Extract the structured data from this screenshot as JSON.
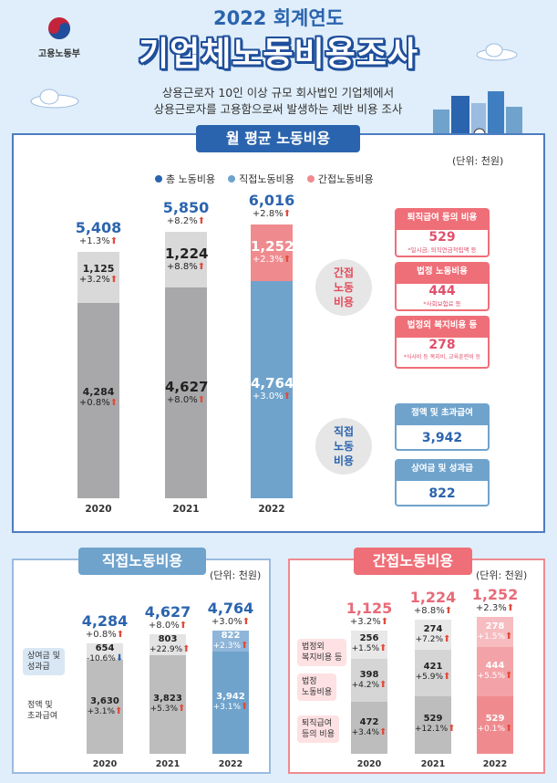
{
  "header": {
    "ministry": "고용노동부",
    "year_title": "2022 회계연도",
    "main_title": "기업체노동비용조사",
    "desc_line1": "상용근로자 10인 이상 규모 회사법인 기업체에서",
    "desc_line2": "상용근로자를 고용함으로써 발생하는 제반 비용 조사"
  },
  "colors": {
    "total": "#2b64ae",
    "direct": "#6fa3cc",
    "indirect": "#ef8b8f",
    "gray_dark": "#a8a8aa",
    "gray_light": "#d9d9da",
    "up_arrow": "#e14b3b",
    "down_arrow": "#2b64ae"
  },
  "chart_data": [
    {
      "type": "bar",
      "title": "월 평균 노동비용",
      "unit": "(단위: 천원)",
      "legend": [
        "총 노동비용",
        "직접노동비용",
        "간접노동비용"
      ],
      "categories": [
        "2020",
        "2021",
        "2022"
      ],
      "series": [
        {
          "name": "직접노동비용",
          "values": [
            4284,
            4627,
            4764
          ],
          "changes": [
            "+0.8%",
            "+8.0%",
            "+3.0%"
          ]
        },
        {
          "name": "간접노동비용",
          "values": [
            1125,
            1224,
            1252
          ],
          "changes": [
            "+3.2%",
            "+8.8%",
            "+2.3%"
          ]
        }
      ],
      "totals": {
        "labels": [
          "5,408",
          "5,850",
          "6,016"
        ],
        "values": [
          5408,
          5850,
          6016
        ],
        "changes": [
          "+1.3%",
          "+8.2%",
          "+2.8%"
        ]
      },
      "labels": {
        "direct": [
          "4,284",
          "4,627",
          "4,764"
        ],
        "indirect": [
          "1,125",
          "1,224",
          "1,252"
        ]
      },
      "bubble_indirect": [
        "간접",
        "노동",
        "비용"
      ],
      "bubble_direct": [
        "직접",
        "노동",
        "비용"
      ],
      "indirect_breakdown": [
        {
          "title": "퇴직급여 등의 비용",
          "value": "529",
          "note": "*일시금, 퇴직연금적립액 등"
        },
        {
          "title": "법정 노동비용",
          "value": "444",
          "note": "*사회보험료 등"
        },
        {
          "title": "법정외 복지비용 등",
          "value": "278",
          "note": "*식사비 등 복지비, 교육훈련비 등"
        }
      ],
      "direct_breakdown": [
        {
          "title": "정액 및 초과급여",
          "value": "3,942"
        },
        {
          "title": "상여금 및 성과급",
          "value": "822"
        }
      ]
    },
    {
      "type": "bar",
      "title": "직접노동비용",
      "unit": "(단위: 천원)",
      "categories": [
        "2020",
        "2021",
        "2022"
      ],
      "series": [
        {
          "name": "정액 및 초과급여",
          "values": [
            3630,
            3823,
            3942
          ],
          "labels": [
            "3,630",
            "3,823",
            "3,942"
          ],
          "changes": [
            "+3.1%",
            "+5.3%",
            "+3.1%"
          ],
          "dirs": [
            "up",
            "up",
            "up"
          ]
        },
        {
          "name": "상여금 및 성과급",
          "values": [
            654,
            803,
            822
          ],
          "labels": [
            "654",
            "803",
            "822"
          ],
          "changes": [
            "-10.6%",
            "+22.9%",
            "+2.3%"
          ],
          "dirs": [
            "down",
            "up",
            "up"
          ]
        }
      ],
      "totals": {
        "labels": [
          "4,284",
          "4,627",
          "4,764"
        ],
        "changes": [
          "+0.8%",
          "+8.0%",
          "+3.0%"
        ]
      },
      "side_labels": [
        [
          "정액 및",
          "초과급여"
        ],
        [
          "상여금 및",
          "성과급"
        ]
      ]
    },
    {
      "type": "bar",
      "title": "간접노동비용",
      "unit": "(단위: 천원)",
      "categories": [
        "2020",
        "2021",
        "2022"
      ],
      "series": [
        {
          "name": "퇴직급여 등의 비용",
          "values": [
            472,
            529,
            529
          ],
          "labels": [
            "472",
            "529",
            "529"
          ],
          "changes": [
            "+3.4%",
            "+12.1%",
            "+0.1%"
          ]
        },
        {
          "name": "법정 노동비용",
          "values": [
            398,
            421,
            444
          ],
          "labels": [
            "398",
            "421",
            "444"
          ],
          "changes": [
            "+4.2%",
            "+5.9%",
            "+5.5%"
          ]
        },
        {
          "name": "법정외 복지비용 등",
          "values": [
            256,
            274,
            278
          ],
          "labels": [
            "256",
            "274",
            "278"
          ],
          "changes": [
            "+1.5%",
            "+7.2%",
            "+1.5%"
          ]
        }
      ],
      "totals": {
        "labels": [
          "1,125",
          "1,224",
          "1,252"
        ],
        "changes": [
          "+3.2%",
          "+8.8%",
          "+2.3%"
        ]
      },
      "side_labels": [
        [
          "퇴직급여",
          "등의 비용"
        ],
        [
          "법정",
          "노동비용"
        ],
        [
          "법정외",
          "복지비용 등"
        ]
      ]
    }
  ]
}
